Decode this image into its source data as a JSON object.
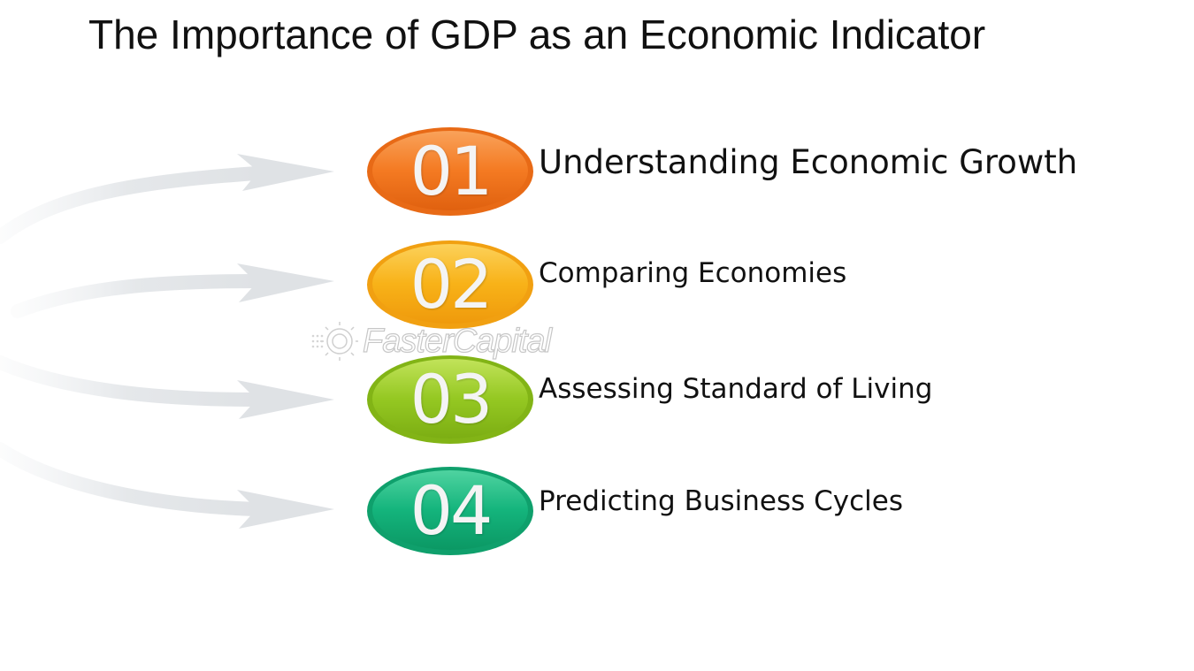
{
  "title": "The Importance of GDP as an Economic Indicator",
  "items": [
    {
      "number": "01",
      "label": "Understanding Economic Growth",
      "color": "#f47a22"
    },
    {
      "number": "02",
      "label": "Comparing Economies",
      "color": "#f8b218"
    },
    {
      "number": "03",
      "label": "Assessing Standard of Living",
      "color": "#95c822"
    },
    {
      "number": "04",
      "label": "Predicting Business Cycles",
      "color": "#14b47c"
    }
  ],
  "watermark": {
    "text": "FasterCapital"
  },
  "icons": {
    "arrow": "curved-arrow-icon",
    "watermark": "gear-icon"
  }
}
